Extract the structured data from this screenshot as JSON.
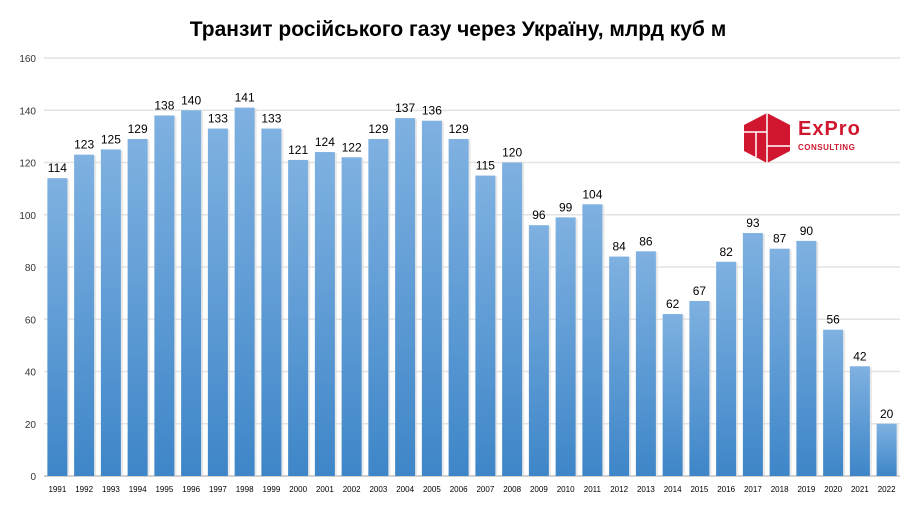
{
  "chart_data": {
    "type": "bar",
    "title": "Транзит російського газу через Україну, млрд куб м",
    "categories": [
      "1991",
      "1992",
      "1993",
      "1994",
      "1995",
      "1996",
      "1997",
      "1998",
      "1999",
      "2000",
      "2001",
      "2002",
      "2003",
      "2004",
      "2005",
      "2006",
      "2007",
      "2008",
      "2009",
      "2010",
      "2011",
      "2012",
      "2013",
      "2014",
      "2015",
      "2016",
      "2017",
      "2018",
      "2019",
      "2020",
      "2021",
      "2022"
    ],
    "values": [
      114,
      123,
      125,
      129,
      138,
      140,
      133,
      141,
      133,
      121,
      124,
      122,
      129,
      137,
      136,
      129,
      115,
      120,
      96,
      99,
      104,
      84,
      86,
      62,
      67,
      82,
      93,
      87,
      90,
      56,
      42,
      20
    ],
    "ylim": [
      0,
      160
    ],
    "yticks": [
      0,
      20,
      40,
      60,
      80,
      100,
      120,
      140,
      160
    ],
    "grid": true,
    "data_labels": true,
    "bar_color_top": "#7fb1e1",
    "bar_color_bottom": "#3e86c8"
  },
  "logo": {
    "name": "ExPro",
    "sub": "CONSULTING",
    "color": "#d0172f"
  }
}
